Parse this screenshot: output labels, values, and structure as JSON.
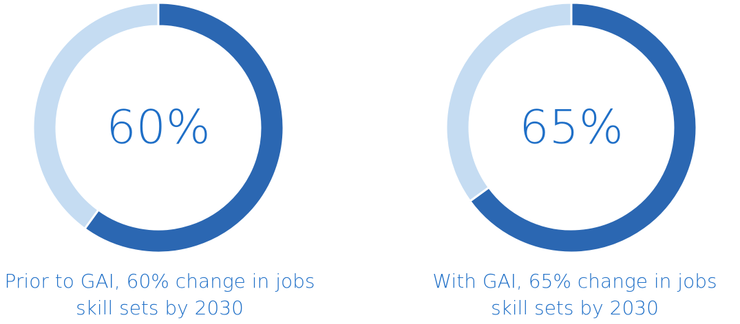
{
  "chart_data": [
    {
      "type": "donut",
      "categories": [
        null,
        null
      ],
      "values": [
        60,
        40
      ],
      "value_labels": [
        "60%",
        null
      ],
      "colors": [
        "#2b67b2",
        "#c5dcf2"
      ],
      "caption": [
        "Prior to GAI, 60% change in jobs",
        "skill sets by 2030"
      ]
    },
    {
      "type": "donut",
      "categories": [
        null,
        null
      ],
      "values": [
        65,
        35
      ],
      "value_labels": [
        "65%",
        null
      ],
      "colors": [
        "#2b67b2",
        "#c5dcf2"
      ],
      "caption": [
        "With GAI, 65% change in jobs",
        "skill sets by 2030"
      ]
    }
  ]
}
